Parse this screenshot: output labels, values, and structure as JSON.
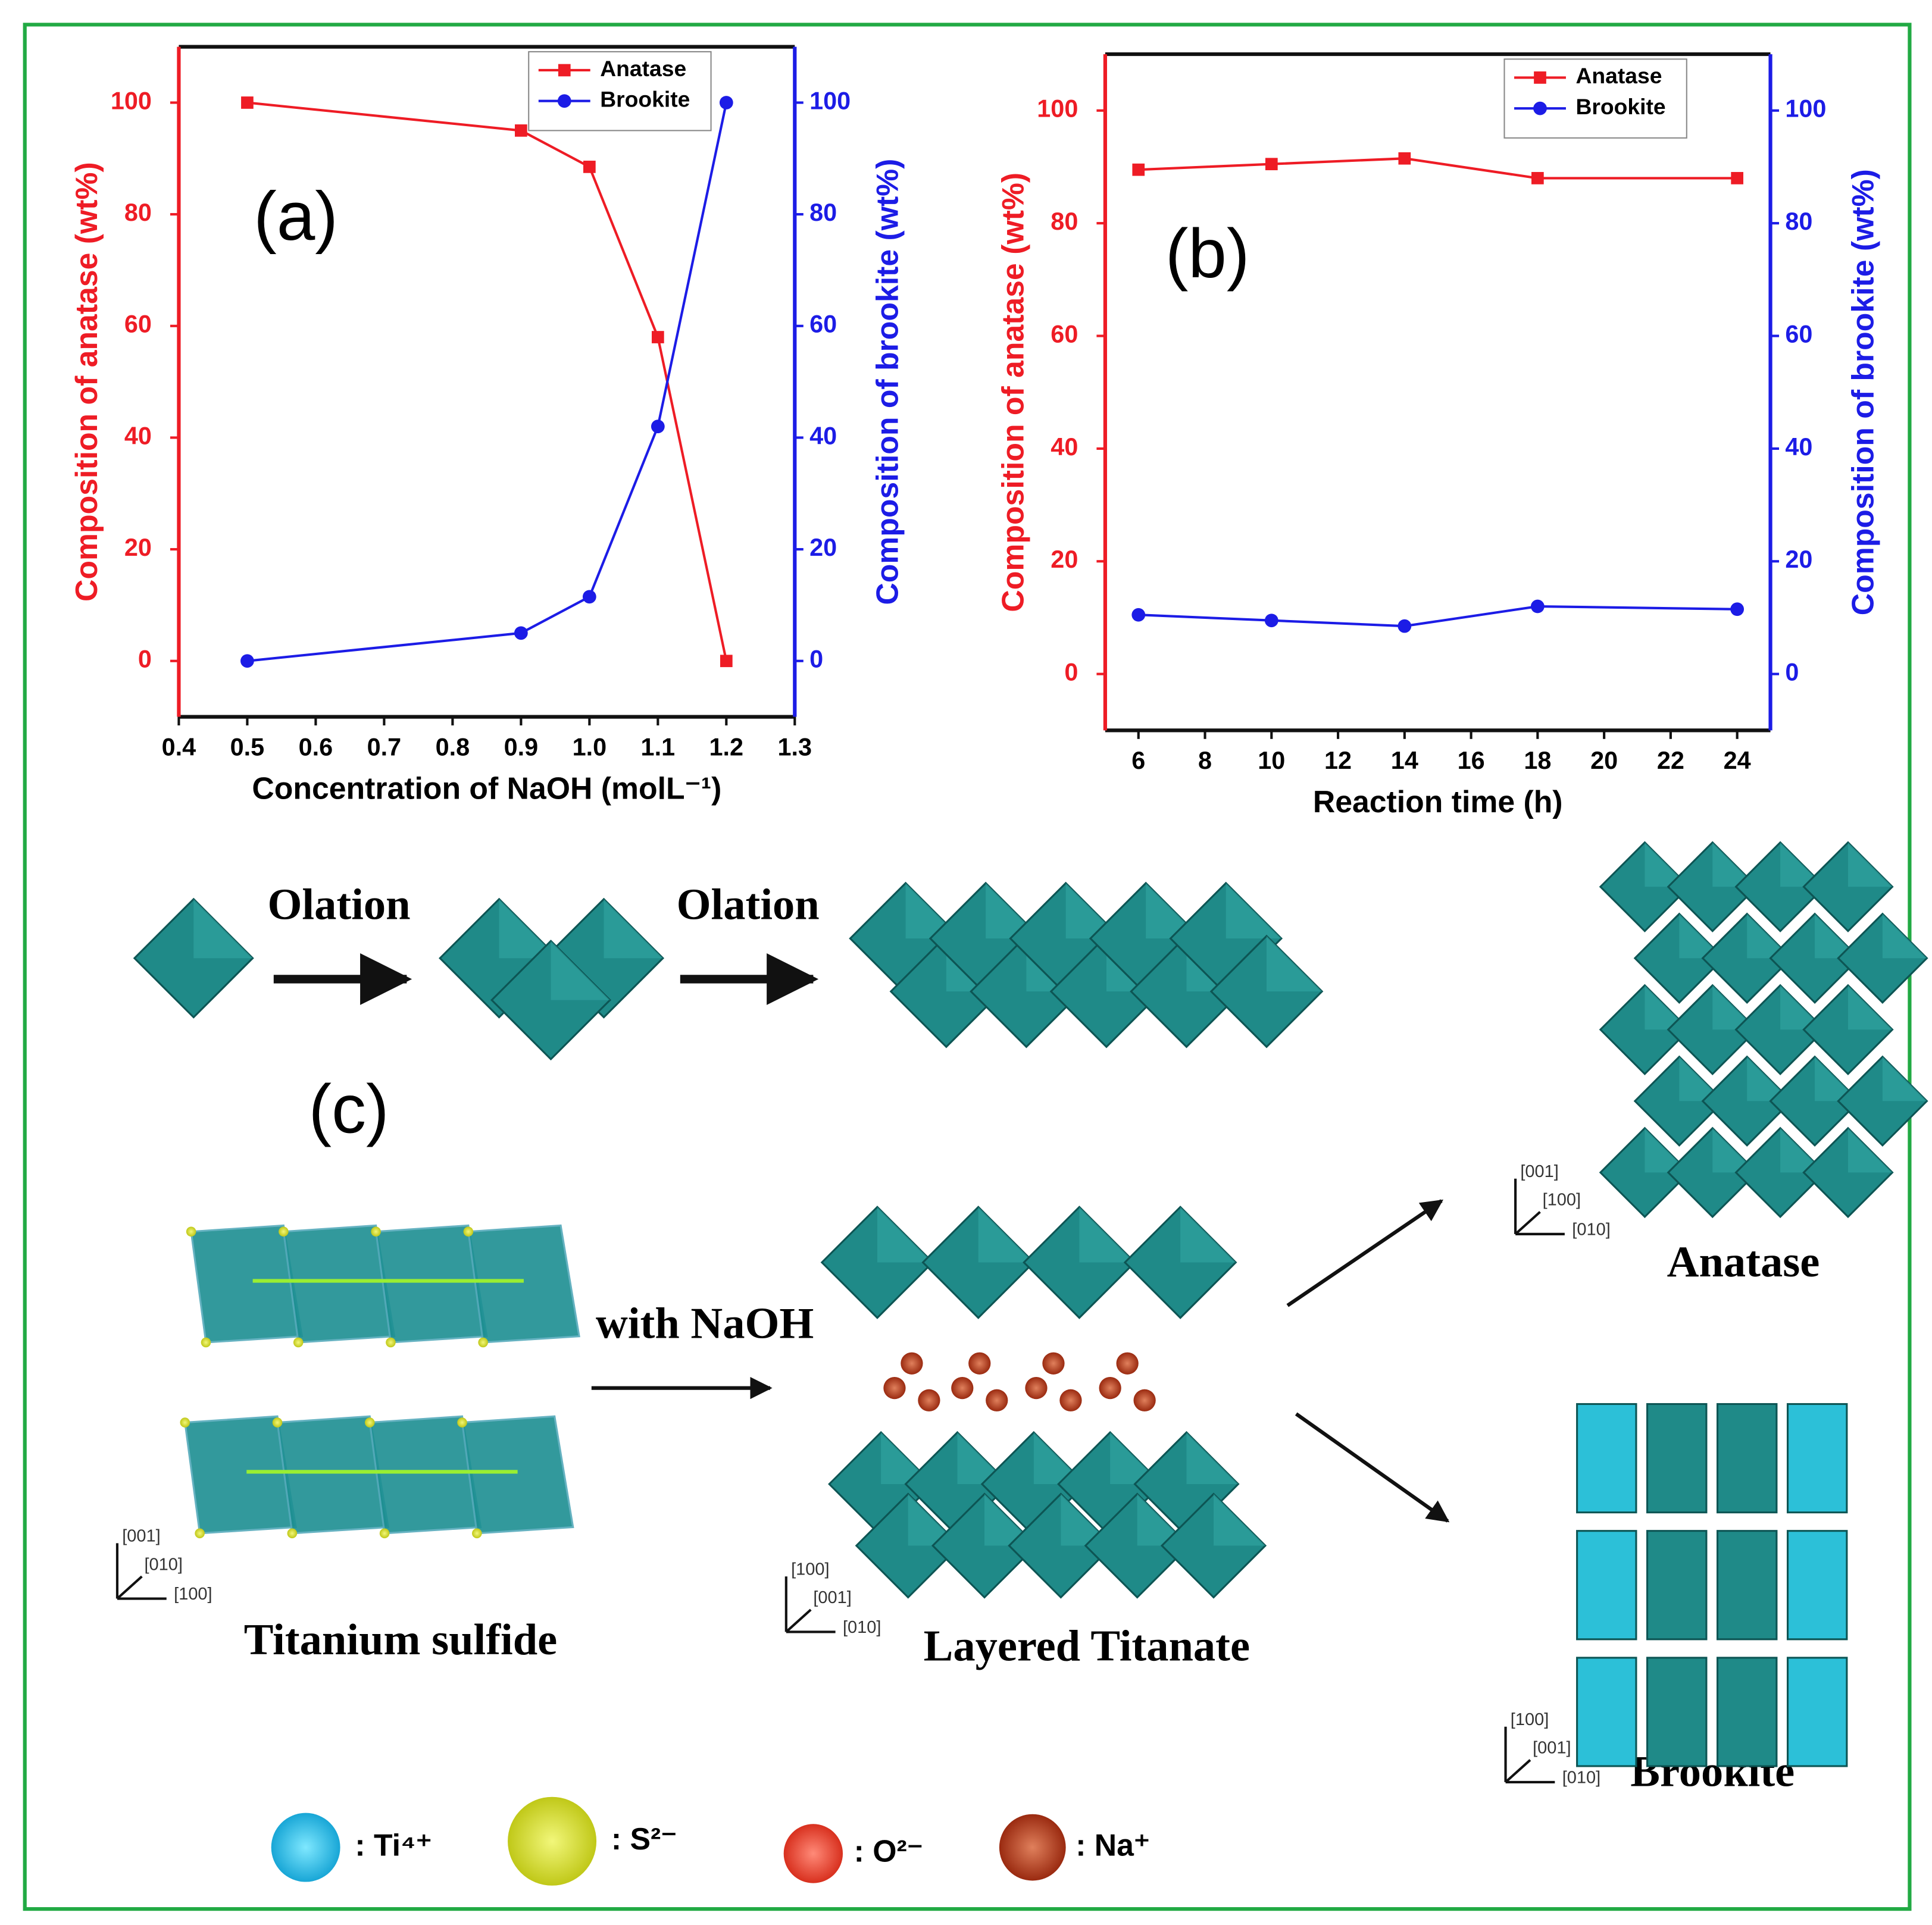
{
  "chart_data": [
    {
      "type": "line",
      "panel": "(a)",
      "xlabel": "Concentration of NaOH (molL⁻¹)",
      "ylabel": "Composition of anatase (wt%)",
      "y2label": "Composition of brookite (wt%)",
      "x": [
        0.5,
        0.9,
        1.0,
        1.1,
        1.2
      ],
      "series": [
        {
          "name": "Anatase",
          "color": "#ee1c25",
          "marker": "square",
          "values": [
            100,
            95,
            88.5,
            58,
            0
          ]
        },
        {
          "name": "Brookite",
          "color": "#1c1ce6",
          "marker": "circle",
          "axis": "y2",
          "values": [
            0,
            5,
            11.5,
            42,
            100
          ]
        }
      ],
      "xlim": [
        0.4,
        1.3
      ],
      "xticks": [
        0.4,
        0.5,
        0.6,
        0.7,
        0.8,
        0.9,
        {
          "value": 1,
          "label": "1.0"
        },
        1.1,
        1.2,
        1.3
      ],
      "ylim": [
        -10,
        110
      ],
      "yticks": [
        0,
        20,
        40,
        60,
        80,
        100
      ],
      "y2lim": [
        -10,
        110
      ],
      "y2ticks": [
        0,
        20,
        40,
        60,
        80,
        100
      ],
      "legend": "upper right"
    },
    {
      "type": "line",
      "panel": "(b)",
      "xlabel": "Reaction time (h)",
      "ylabel": "Composition of anatase (wt%)",
      "y2label": "Composition of brookite (wt%)",
      "x": [
        6,
        10,
        14,
        18,
        24
      ],
      "series": [
        {
          "name": "Anatase",
          "color": "#ee1c25",
          "marker": "square",
          "values": [
            89.5,
            90.5,
            91.5,
            88,
            88
          ]
        },
        {
          "name": "Brookite",
          "color": "#1c1ce6",
          "marker": "circle",
          "axis": "y2",
          "values": [
            10.5,
            9.5,
            8.5,
            12,
            11.5
          ]
        }
      ],
      "xlim": [
        5,
        25
      ],
      "xticks": [
        6,
        8,
        10,
        12,
        14,
        16,
        18,
        20,
        22,
        24
      ],
      "ylim": [
        -10,
        110
      ],
      "yticks": [
        0,
        20,
        40,
        60,
        80,
        100
      ],
      "y2lim": [
        -10,
        110
      ],
      "y2ticks": [
        0,
        20,
        40,
        60,
        80,
        100
      ],
      "legend": "upper right"
    }
  ],
  "diagram": {
    "panel": "(c)",
    "steps": [
      "Olation",
      "Olation"
    ],
    "reagent": "with NaOH",
    "structures": [
      "Titanium sulfide",
      "Layered Titanate",
      "Anatase",
      "Brookite"
    ],
    "axes": [
      [
        "[001]",
        "[010]",
        "[100]"
      ],
      [
        "[100]",
        "[001]",
        "[010]"
      ],
      [
        "[001]",
        "[100]",
        "[010]"
      ],
      [
        "[100]",
        "[001]",
        "[010]"
      ]
    ],
    "legend": [
      ": Ti⁴⁺",
      ": S²⁻",
      ": O²⁻",
      ": Na⁺"
    ]
  }
}
